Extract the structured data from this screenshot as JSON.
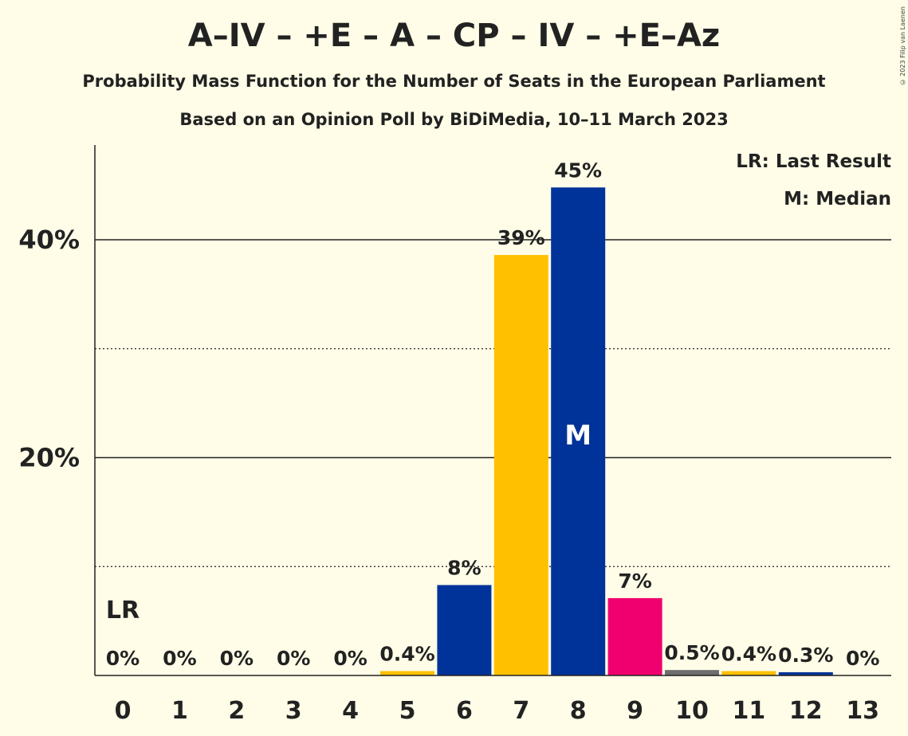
{
  "title": "A–IV – +E – A – CP – IV – +E–Az",
  "subtitle": "Probability Mass Function for the Number of Seats in the European Parliament",
  "subtitle2": "Based on an Opinion Poll by BiDiMedia, 10–11 March 2023",
  "copyright": "© 2023 Filip van Laenen",
  "legend": {
    "last_result": "LR: Last Result",
    "median": "M: Median"
  },
  "markers": {
    "last_result": "LR",
    "median": "M"
  },
  "colors": {
    "background": "#FFFDE7",
    "blue": "#003399",
    "yellow": "#FFC000",
    "pink": "#F0006E",
    "grey": "#6E6E6E"
  },
  "chart_data": {
    "type": "bar",
    "categories": [
      "0",
      "1",
      "2",
      "3",
      "4",
      "5",
      "6",
      "7",
      "8",
      "9",
      "10",
      "11",
      "12",
      "13"
    ],
    "values": [
      0,
      0,
      0,
      0,
      0,
      0.4,
      8.3,
      38.6,
      44.8,
      7.1,
      0.5,
      0.4,
      0.3,
      0
    ],
    "data_labels": [
      "0%",
      "0%",
      "0%",
      "0%",
      "0%",
      "0.4%",
      "8%",
      "39%",
      "45%",
      "7%",
      "0.5%",
      "0.4%",
      "0.3%",
      "0%"
    ],
    "bar_colors": [
      "#FFC000",
      "#FFC000",
      "#FFC000",
      "#FFC000",
      "#FFC000",
      "#FFC000",
      "#003399",
      "#FFC000",
      "#003399",
      "#F0006E",
      "#6E6E6E",
      "#FFC000",
      "#003399",
      "#003399"
    ],
    "yticks": [
      {
        "value": 20,
        "label": "20%"
      },
      {
        "value": 40,
        "label": "40%"
      }
    ],
    "minor_grid": [
      10,
      30
    ],
    "ylim": [
      0,
      48.7
    ],
    "last_result_seat": 0,
    "median_seat": 8
  }
}
